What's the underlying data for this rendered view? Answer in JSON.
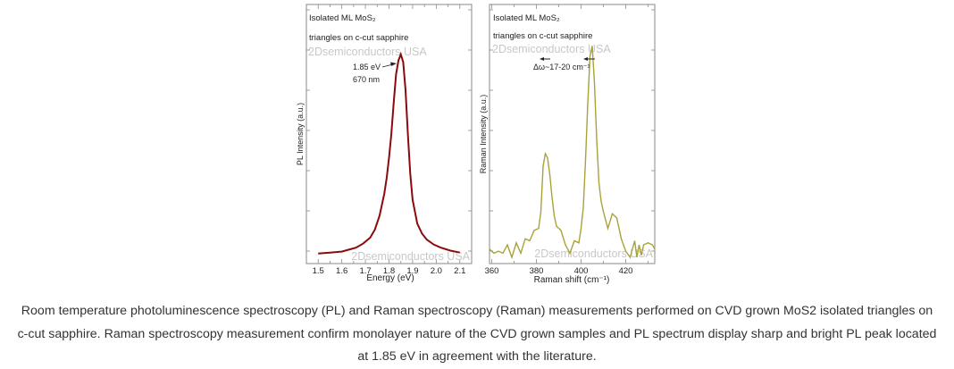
{
  "colors": {
    "pl_line": "#8b0a0a",
    "raman_line": "#a8a23a",
    "watermark": "#c8c8c8",
    "frame": "#888888",
    "text": "#222222",
    "caption": "#333333"
  },
  "chart_data": [
    {
      "type": "line",
      "title": "",
      "annotations": [
        "Isolated ML MoS₂",
        "triangles on c-cut sapphire",
        "1.85 eV",
        "670 nm"
      ],
      "watermark": "2Dsemiconductors USA",
      "xlabel": "Energy (eV)",
      "ylabel": "PL Intensity (a.u.)",
      "xlim": [
        1.45,
        2.15
      ],
      "ylim": [
        -0.05,
        1.25
      ],
      "xticks": [
        1.5,
        1.6,
        1.7,
        1.8,
        1.9,
        2.0,
        2.1
      ],
      "xtick_labels": [
        "1.5",
        "1.6",
        "1.7",
        "1.8",
        "1.9",
        "2.0",
        "2.1"
      ],
      "grid": false,
      "series": [
        {
          "name": "PL",
          "x": [
            1.5,
            1.55,
            1.6,
            1.63,
            1.66,
            1.69,
            1.72,
            1.74,
            1.76,
            1.78,
            1.79,
            1.8,
            1.81,
            1.82,
            1.83,
            1.84,
            1.85,
            1.86,
            1.87,
            1.88,
            1.89,
            1.9,
            1.92,
            1.94,
            1.96,
            1.99,
            2.02,
            2.06,
            2.1
          ],
          "y": [
            0.0,
            0.005,
            0.01,
            0.02,
            0.03,
            0.05,
            0.08,
            0.12,
            0.19,
            0.3,
            0.38,
            0.48,
            0.6,
            0.76,
            0.9,
            0.97,
            1.0,
            0.96,
            0.82,
            0.6,
            0.4,
            0.27,
            0.15,
            0.1,
            0.07,
            0.045,
            0.03,
            0.015,
            0.005
          ]
        }
      ]
    },
    {
      "type": "line",
      "title": "",
      "annotations": [
        "Isolated ML MoS₂",
        "triangles on c-cut sapphire",
        "Δω~17-20 cm⁻¹"
      ],
      "watermark": "2Dsemiconductors USA",
      "xlabel": "Raman shift (cm⁻¹)",
      "ylabel": "Raman Intensity (a.u.)",
      "xlim": [
        359,
        433
      ],
      "ylim": [
        -0.05,
        1.2
      ],
      "xticks": [
        360,
        380,
        400,
        420
      ],
      "xtick_labels": [
        "360",
        "380",
        "400",
        "420"
      ],
      "grid": false,
      "series": [
        {
          "name": "Raman",
          "x": [
            359,
            361,
            363,
            365,
            367,
            369,
            371,
            373,
            375,
            377,
            379,
            381,
            382,
            383,
            384,
            385,
            386,
            387,
            388,
            389,
            391,
            393,
            395,
            397,
            399,
            400,
            401,
            402,
            403,
            404,
            405,
            406,
            407,
            408,
            409,
            410,
            412,
            414,
            416,
            418,
            420,
            422,
            424,
            425,
            426,
            427,
            428,
            430,
            432,
            433
          ],
          "y": [
            0.02,
            0.0,
            0.01,
            0.0,
            0.04,
            -0.02,
            0.05,
            0.0,
            0.07,
            0.06,
            0.11,
            0.12,
            0.2,
            0.42,
            0.48,
            0.46,
            0.38,
            0.27,
            0.18,
            0.13,
            0.11,
            0.04,
            0.0,
            0.06,
            0.05,
            0.12,
            0.22,
            0.45,
            0.72,
            0.95,
            1.0,
            0.82,
            0.55,
            0.34,
            0.25,
            0.2,
            0.12,
            0.19,
            0.17,
            0.07,
            0.01,
            -0.02,
            0.06,
            -0.02,
            0.04,
            -0.01,
            0.04,
            0.05,
            0.04,
            0.02
          ]
        }
      ]
    }
  ],
  "caption": {
    "line1": "Room temperature photoluminescence spectroscopy (PL) and Raman spectroscopy (Raman) measurements performed on CVD grown MoS2 isolated triangles on",
    "line2": "c-cut sapphire. Raman spectroscopy measurement confirm monolayer nature of the CVD grown samples and PL spectrum display sharp and bright PL peak located",
    "line3": "at 1.85 eV in agreement with the literature."
  }
}
